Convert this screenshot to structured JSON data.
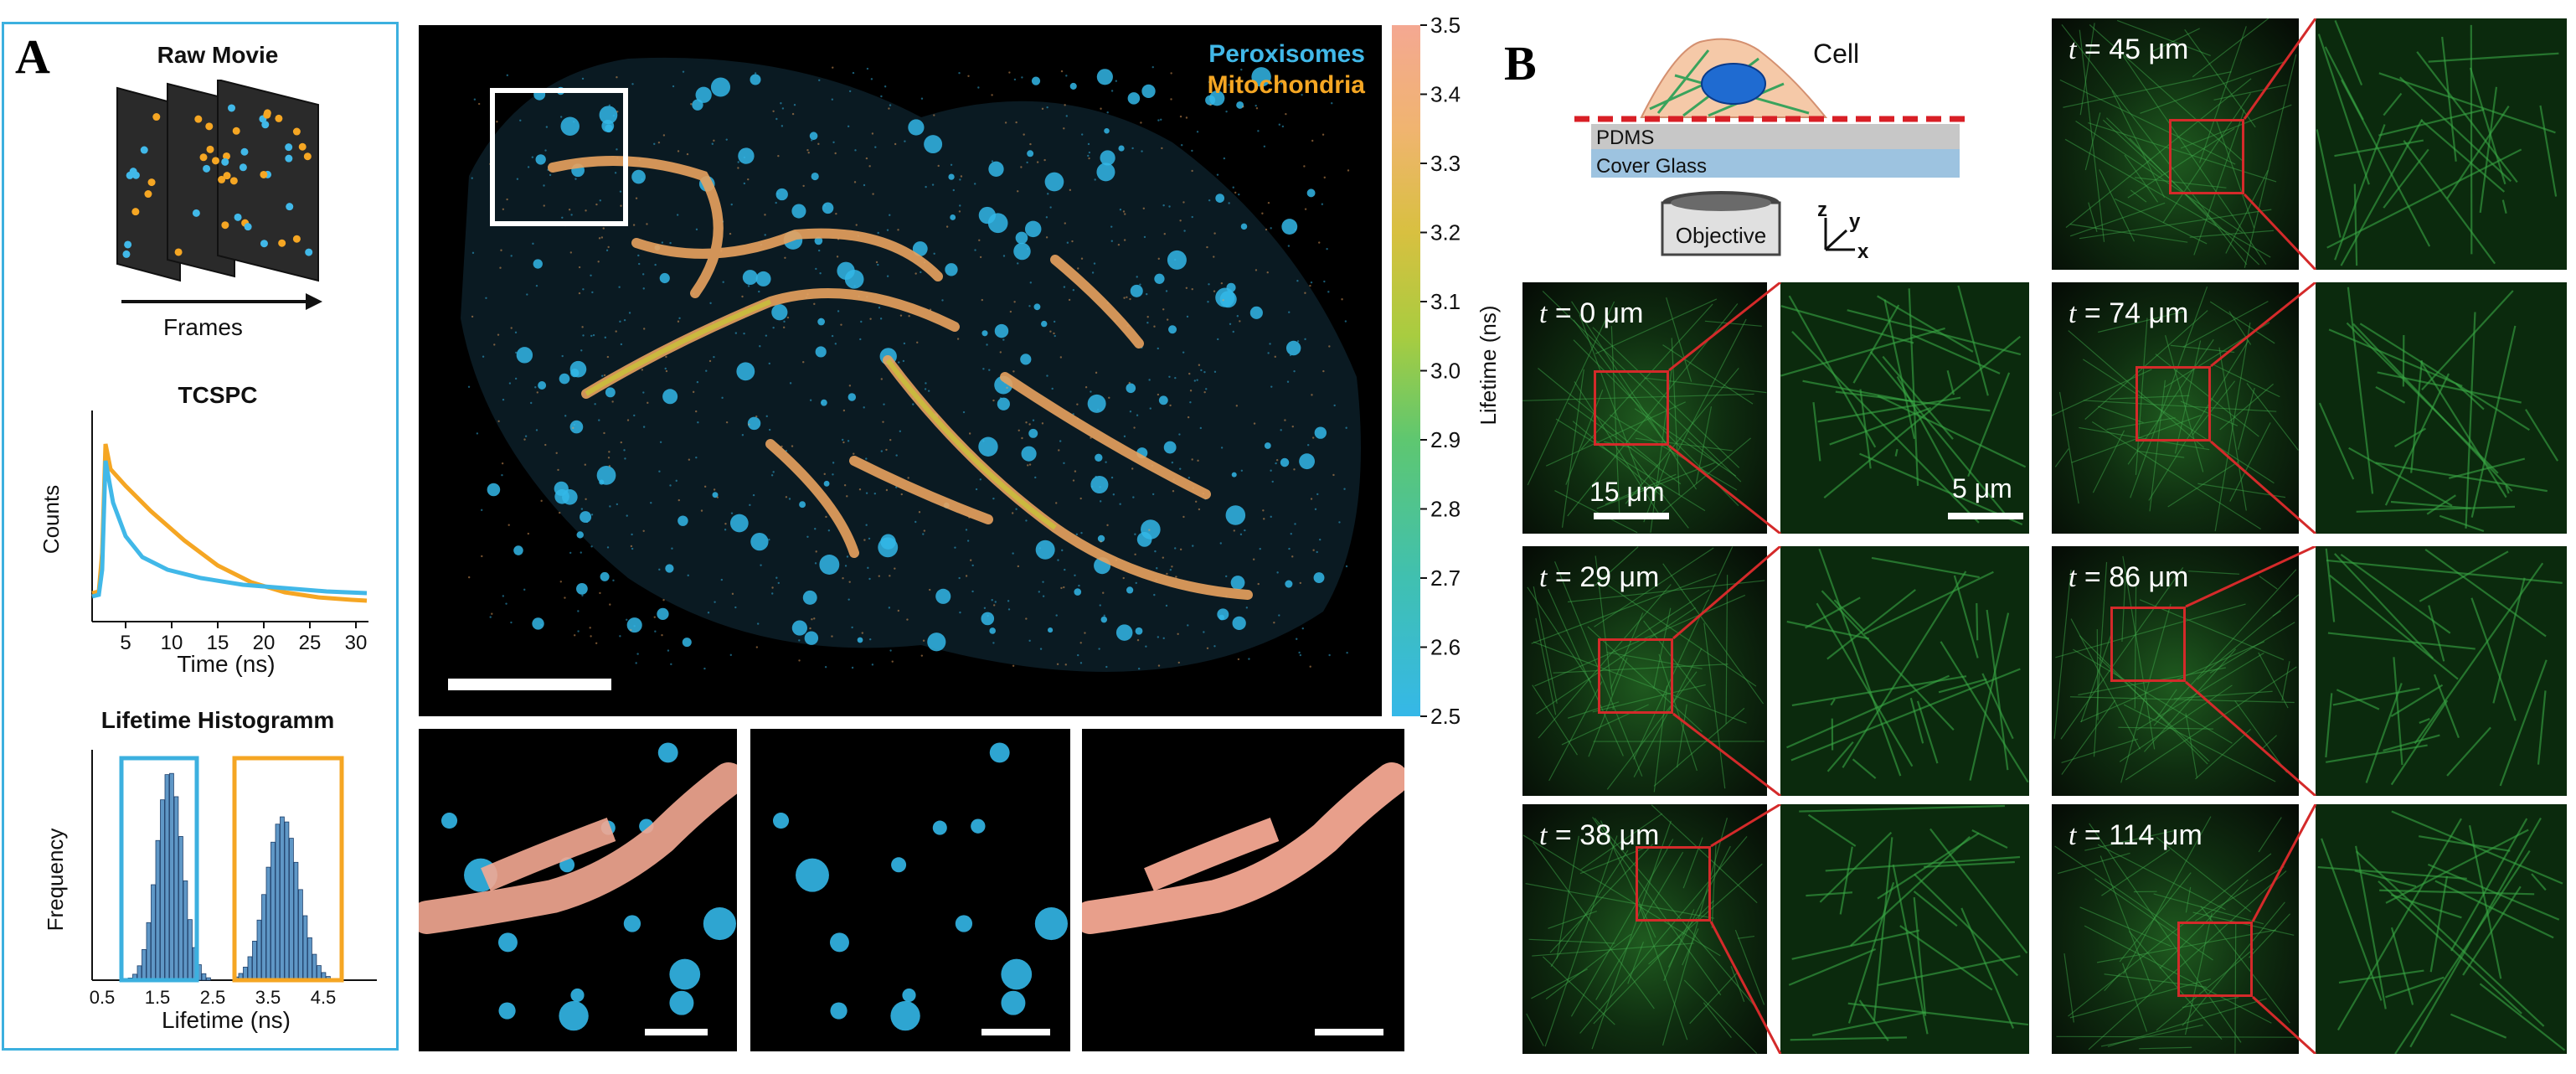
{
  "panel_a": {
    "letter": "A",
    "raw_movie": {
      "title": "Raw Movie",
      "axis_label": "Frames"
    },
    "tcspc": {
      "title": "TCSPC",
      "ylabel": "Counts",
      "xlabel": "Time (ns)",
      "xticks": [
        "5",
        "10",
        "15",
        "20",
        "25",
        "30"
      ],
      "colors": {
        "peroxisomes": "#41b8e8",
        "mitochondria": "#f5a623"
      }
    },
    "histogram": {
      "title": "Lifetime Histogramm",
      "ylabel": "Frequency",
      "xlabel": "Lifetime (ns)",
      "xticks": [
        "0.5",
        "1.5",
        "2.5",
        "3.5",
        "4.5"
      ]
    },
    "main_image": {
      "legend_peroxisomes": "Peroxisomes",
      "legend_mitochondria": "Mitochondria"
    },
    "colorbar": {
      "label": "Lifetime (ns)",
      "ticks": [
        "3.5",
        "3.4",
        "3.3",
        "3.2",
        "3.1",
        "3.0",
        "2.9",
        "2.8",
        "2.7",
        "2.6",
        "2.5"
      ]
    }
  },
  "panel_b": {
    "letter": "B",
    "schematic": {
      "cell_label": "Cell",
      "pdms_label": "PDMS",
      "glass_label": "Cover Glass",
      "objective_label": "Objective",
      "axis_z": "z",
      "axis_y": "y",
      "axis_x": "x"
    },
    "tiles": [
      {
        "t_prefix": "t",
        "value": " = 45 μm"
      },
      {
        "t_prefix": "t",
        "value": " = 0 μm"
      },
      {
        "t_prefix": "t",
        "value": " = 74 μm"
      },
      {
        "t_prefix": "t",
        "value": " = 29 μm"
      },
      {
        "t_prefix": "t",
        "value": " = 86 μm"
      },
      {
        "t_prefix": "t",
        "value": " = 38 μm"
      },
      {
        "t_prefix": "t",
        "value": " = 114 μm"
      }
    ],
    "scale_overview": "15 μm",
    "scale_zoom": "5 μm"
  }
}
